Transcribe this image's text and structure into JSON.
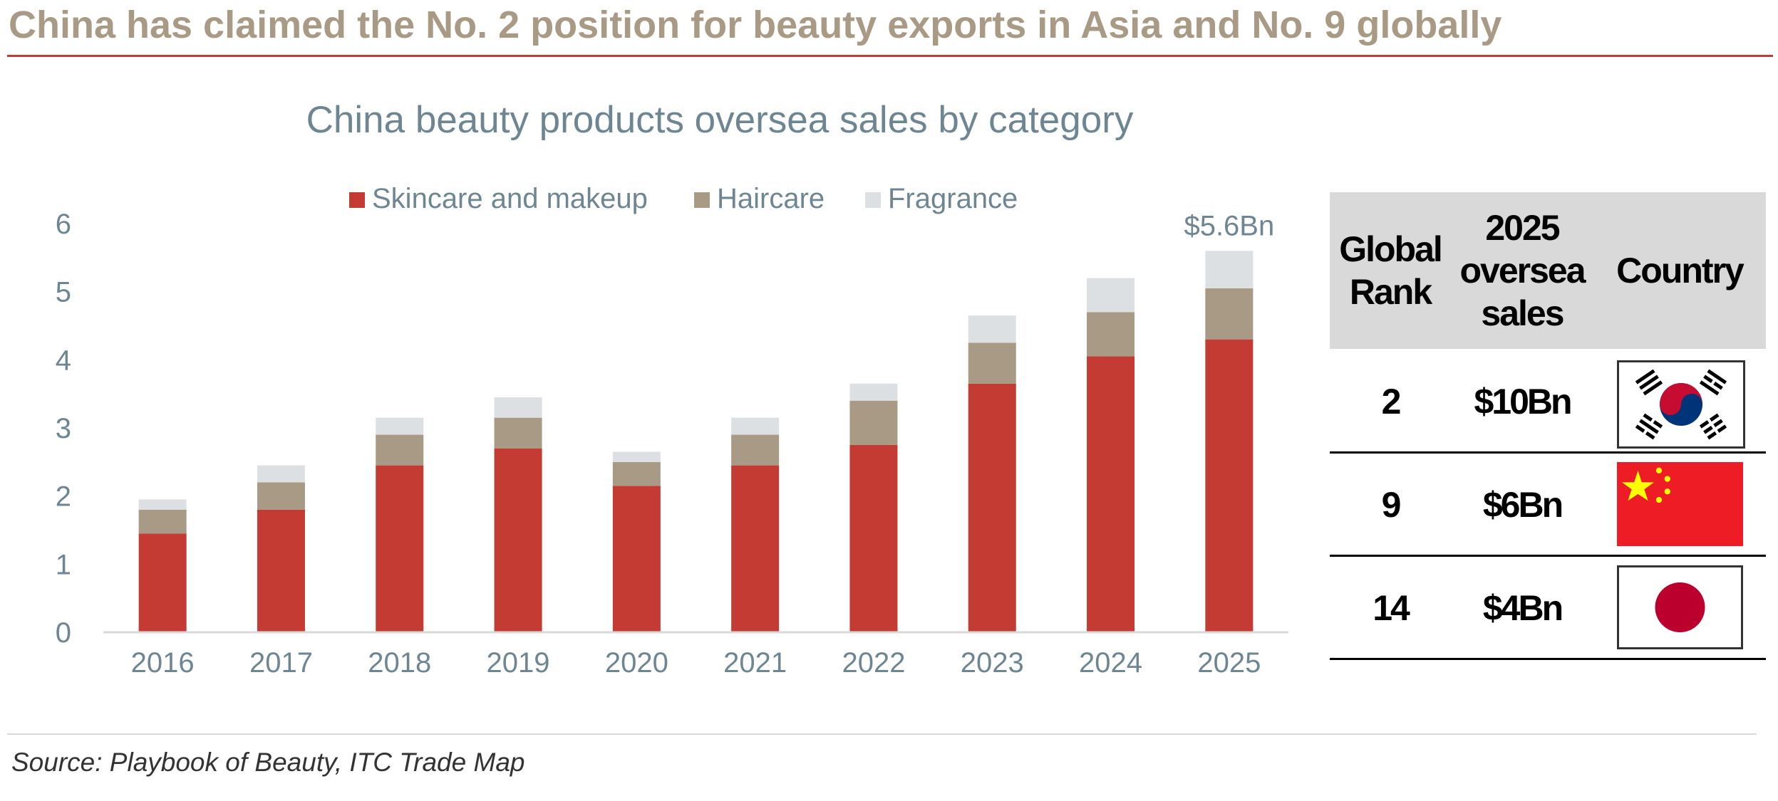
{
  "headline": "China has claimed the No. 2 position for beauty exports in Asia and No. 9 globally",
  "chart_data": {
    "type": "bar",
    "stacked": true,
    "title": "China beauty products oversea sales by category",
    "categories": [
      "2016",
      "2017",
      "2018",
      "2019",
      "2020",
      "2021",
      "2022",
      "2023",
      "2024",
      "2025"
    ],
    "series": [
      {
        "name": "Skincare and makeup",
        "color": "#c43b34",
        "values": [
          1.45,
          1.8,
          2.45,
          2.7,
          2.15,
          2.45,
          2.75,
          3.65,
          4.05,
          4.3
        ]
      },
      {
        "name": "Haircare",
        "color": "#a89a84",
        "values": [
          0.35,
          0.4,
          0.45,
          0.45,
          0.35,
          0.45,
          0.65,
          0.6,
          0.65,
          0.75
        ]
      },
      {
        "name": "Fragrance",
        "color": "#dde0e3",
        "values": [
          0.15,
          0.25,
          0.25,
          0.3,
          0.15,
          0.25,
          0.25,
          0.4,
          0.5,
          0.55
        ]
      }
    ],
    "yticks": [
      "0",
      "1",
      "2",
      "3",
      "4",
      "5",
      "6"
    ],
    "ylim": [
      0,
      6
    ],
    "legend_position": "top",
    "grid": false,
    "annotation": {
      "category": "2025",
      "text": "$5.6Bn"
    }
  },
  "rank_table": {
    "headers": [
      "Global Rank",
      "2025 oversea sales",
      "Country"
    ],
    "rows": [
      {
        "rank": "2",
        "sales": "$10Bn",
        "flag_icon": "south-korea-flag-icon"
      },
      {
        "rank": "9",
        "sales": "$6Bn",
        "flag_icon": "china-flag-icon"
      },
      {
        "rank": "14",
        "sales": "$4Bn",
        "flag_icon": "japan-flag-icon"
      }
    ]
  },
  "source": "Source: Playbook of Beauty, ITC Trade Map"
}
